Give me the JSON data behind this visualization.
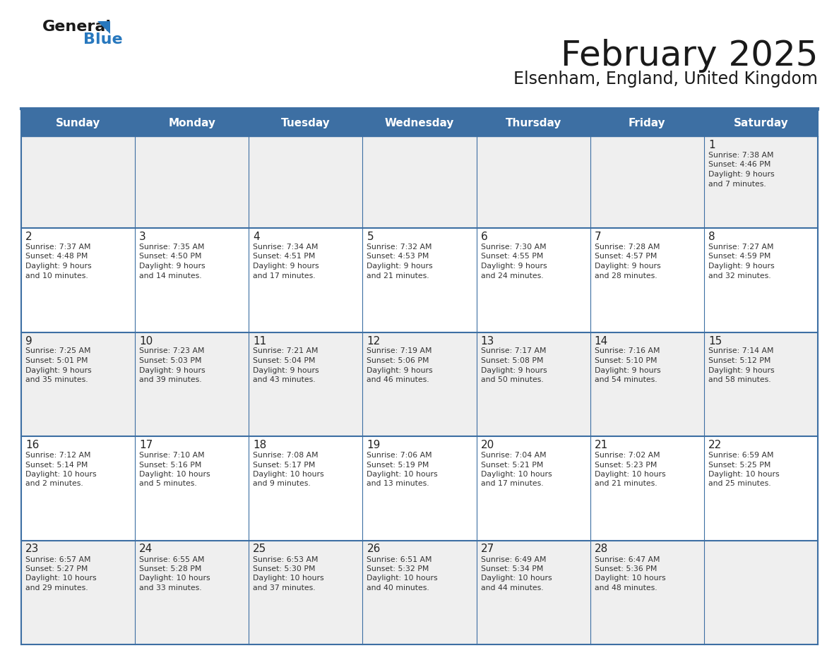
{
  "title": "February 2025",
  "subtitle": "Elsenham, England, United Kingdom",
  "days_of_week": [
    "Sunday",
    "Monday",
    "Tuesday",
    "Wednesday",
    "Thursday",
    "Friday",
    "Saturday"
  ],
  "header_bg": "#3d6fa3",
  "header_text": "#ffffff",
  "row_bg_odd": "#efefef",
  "row_bg_even": "#ffffff",
  "line_color": "#3d6fa3",
  "text_color": "#333333",
  "day_num_color": "#222222",
  "logo_black": "#1a1a1a",
  "logo_blue": "#2878be",
  "calendar_data": [
    [
      {
        "day": null
      },
      {
        "day": null
      },
      {
        "day": null
      },
      {
        "day": null
      },
      {
        "day": null
      },
      {
        "day": null
      },
      {
        "day": 1,
        "sunrise": "7:38 AM",
        "sunset": "4:46 PM",
        "daylight": "9 hours and 7 minutes."
      }
    ],
    [
      {
        "day": 2,
        "sunrise": "7:37 AM",
        "sunset": "4:48 PM",
        "daylight": "9 hours and 10 minutes."
      },
      {
        "day": 3,
        "sunrise": "7:35 AM",
        "sunset": "4:50 PM",
        "daylight": "9 hours and 14 minutes."
      },
      {
        "day": 4,
        "sunrise": "7:34 AM",
        "sunset": "4:51 PM",
        "daylight": "9 hours and 17 minutes."
      },
      {
        "day": 5,
        "sunrise": "7:32 AM",
        "sunset": "4:53 PM",
        "daylight": "9 hours and 21 minutes."
      },
      {
        "day": 6,
        "sunrise": "7:30 AM",
        "sunset": "4:55 PM",
        "daylight": "9 hours and 24 minutes."
      },
      {
        "day": 7,
        "sunrise": "7:28 AM",
        "sunset": "4:57 PM",
        "daylight": "9 hours and 28 minutes."
      },
      {
        "day": 8,
        "sunrise": "7:27 AM",
        "sunset": "4:59 PM",
        "daylight": "9 hours and 32 minutes."
      }
    ],
    [
      {
        "day": 9,
        "sunrise": "7:25 AM",
        "sunset": "5:01 PM",
        "daylight": "9 hours and 35 minutes."
      },
      {
        "day": 10,
        "sunrise": "7:23 AM",
        "sunset": "5:03 PM",
        "daylight": "9 hours and 39 minutes."
      },
      {
        "day": 11,
        "sunrise": "7:21 AM",
        "sunset": "5:04 PM",
        "daylight": "9 hours and 43 minutes."
      },
      {
        "day": 12,
        "sunrise": "7:19 AM",
        "sunset": "5:06 PM",
        "daylight": "9 hours and 46 minutes."
      },
      {
        "day": 13,
        "sunrise": "7:17 AM",
        "sunset": "5:08 PM",
        "daylight": "9 hours and 50 minutes."
      },
      {
        "day": 14,
        "sunrise": "7:16 AM",
        "sunset": "5:10 PM",
        "daylight": "9 hours and 54 minutes."
      },
      {
        "day": 15,
        "sunrise": "7:14 AM",
        "sunset": "5:12 PM",
        "daylight": "9 hours and 58 minutes."
      }
    ],
    [
      {
        "day": 16,
        "sunrise": "7:12 AM",
        "sunset": "5:14 PM",
        "daylight": "10 hours and 2 minutes."
      },
      {
        "day": 17,
        "sunrise": "7:10 AM",
        "sunset": "5:16 PM",
        "daylight": "10 hours and 5 minutes."
      },
      {
        "day": 18,
        "sunrise": "7:08 AM",
        "sunset": "5:17 PM",
        "daylight": "10 hours and 9 minutes."
      },
      {
        "day": 19,
        "sunrise": "7:06 AM",
        "sunset": "5:19 PM",
        "daylight": "10 hours and 13 minutes."
      },
      {
        "day": 20,
        "sunrise": "7:04 AM",
        "sunset": "5:21 PM",
        "daylight": "10 hours and 17 minutes."
      },
      {
        "day": 21,
        "sunrise": "7:02 AM",
        "sunset": "5:23 PM",
        "daylight": "10 hours and 21 minutes."
      },
      {
        "day": 22,
        "sunrise": "6:59 AM",
        "sunset": "5:25 PM",
        "daylight": "10 hours and 25 minutes."
      }
    ],
    [
      {
        "day": 23,
        "sunrise": "6:57 AM",
        "sunset": "5:27 PM",
        "daylight": "10 hours and 29 minutes."
      },
      {
        "day": 24,
        "sunrise": "6:55 AM",
        "sunset": "5:28 PM",
        "daylight": "10 hours and 33 minutes."
      },
      {
        "day": 25,
        "sunrise": "6:53 AM",
        "sunset": "5:30 PM",
        "daylight": "10 hours and 37 minutes."
      },
      {
        "day": 26,
        "sunrise": "6:51 AM",
        "sunset": "5:32 PM",
        "daylight": "10 hours and 40 minutes."
      },
      {
        "day": 27,
        "sunrise": "6:49 AM",
        "sunset": "5:34 PM",
        "daylight": "10 hours and 44 minutes."
      },
      {
        "day": 28,
        "sunrise": "6:47 AM",
        "sunset": "5:36 PM",
        "daylight": "10 hours and 48 minutes."
      },
      {
        "day": null
      }
    ]
  ]
}
